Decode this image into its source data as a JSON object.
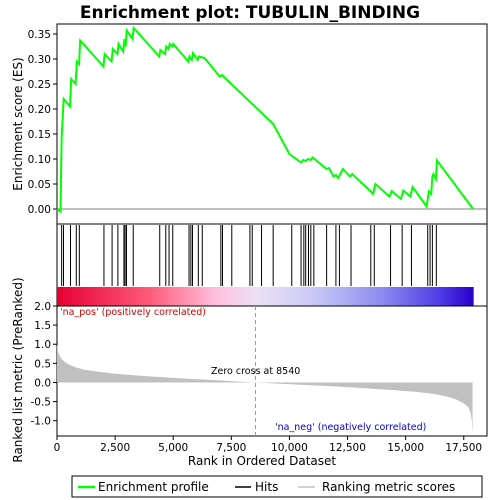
{
  "chart_data": {
    "type": "line",
    "title": "Enrichment plot: TUBULIN_BINDING",
    "xlabel": "Rank in Ordered Dataset",
    "top_ylabel": "Enrichment score (ES)",
    "bottom_ylabel": "Ranked list metric (PreRanked)",
    "xlim": [
      0,
      18500
    ],
    "x_ticks": [
      0,
      2500,
      5000,
      7500,
      10000,
      12500,
      15000,
      17500
    ],
    "x_tick_labels": [
      "0",
      "2,500",
      "5,000",
      "7,500",
      "10,000",
      "12,500",
      "15,000",
      "17,500"
    ],
    "es_ylim": [
      -0.03,
      0.37
    ],
    "es_ticks": [
      0.0,
      0.05,
      0.1,
      0.15,
      0.2,
      0.25,
      0.3,
      0.35
    ],
    "es_tick_labels": [
      "0.00",
      "0.05",
      "0.10",
      "0.15",
      "0.20",
      "0.25",
      "0.30",
      "0.35"
    ],
    "metric_ylim": [
      -1.4,
      2.0
    ],
    "metric_ticks": [
      2.0,
      1.5,
      1.0,
      0.5,
      0.0,
      -0.5,
      -1.0
    ],
    "metric_tick_labels": [
      "2.0",
      "1.5",
      "1.0",
      "0.5",
      "0.0",
      "-0.5",
      "-1.0"
    ],
    "grid": false,
    "series": [
      {
        "name": "Enrichment profile",
        "color": "#00ff00",
        "x": [
          0,
          150,
          200,
          240,
          290,
          560,
          610,
          800,
          850,
          950,
          1000,
          2000,
          2050,
          2350,
          2400,
          2600,
          2650,
          2850,
          2900,
          2950,
          3000,
          3250,
          3300,
          4400,
          4450,
          4650,
          4700,
          4800,
          4850,
          4950,
          5000,
          5650,
          5700,
          5800,
          5850,
          6050,
          6100,
          6350,
          7000,
          7100,
          7500,
          9300,
          10000,
          10500,
          10600,
          10700,
          10800,
          10900,
          11000,
          11600,
          11700,
          11900,
          12000,
          12100,
          12300,
          12500,
          12600,
          12700,
          13500,
          13600,
          13700,
          14300,
          14400,
          14800,
          14900,
          15200,
          15300,
          15900,
          16000,
          16100,
          16150,
          16200,
          16300,
          16350,
          17900
        ],
        "y": [
          0.0,
          -0.005,
          0.14,
          0.18,
          0.22,
          0.205,
          0.26,
          0.25,
          0.295,
          0.29,
          0.337,
          0.285,
          0.31,
          0.295,
          0.32,
          0.31,
          0.33,
          0.315,
          0.34,
          0.325,
          0.357,
          0.34,
          0.362,
          0.305,
          0.318,
          0.31,
          0.325,
          0.32,
          0.33,
          0.325,
          0.33,
          0.295,
          0.305,
          0.298,
          0.312,
          0.298,
          0.305,
          0.302,
          0.265,
          0.268,
          0.25,
          0.17,
          0.11,
          0.093,
          0.098,
          0.096,
          0.1,
          0.098,
          0.103,
          0.08,
          0.082,
          0.065,
          0.068,
          0.062,
          0.08,
          0.07,
          0.065,
          0.07,
          0.035,
          0.03,
          0.05,
          0.025,
          0.036,
          0.02,
          0.037,
          0.025,
          0.044,
          0.005,
          0.035,
          0.03,
          0.065,
          0.07,
          0.06,
          0.097,
          0.0
        ]
      }
    ],
    "hits": [
      200,
      280,
      580,
      830,
      960,
      2020,
      2370,
      2620,
      2880,
      2930,
      2990,
      3280,
      4420,
      4680,
      4820,
      4980,
      5680,
      5760,
      5830,
      6080,
      6250,
      7050,
      7120,
      7520,
      8300,
      8400,
      8800,
      9300,
      10100,
      10500,
      10620,
      10700,
      10820,
      10920,
      11050,
      11600,
      12000,
      12150,
      12650,
      13500,
      13650,
      14350,
      14850,
      15250,
      15950,
      16050,
      16150,
      16320
    ],
    "ranked_metric": {
      "name": "Ranking metric scores",
      "color": "#c0c0c0",
      "x": [
        0,
        50,
        150,
        300,
        500,
        800,
        1200,
        1800,
        2500,
        3500,
        4500,
        5500,
        6500,
        7500,
        8540,
        9500,
        10500,
        11500,
        12500,
        13500,
        14500,
        15500,
        16200,
        16800,
        17200,
        17500,
        17700,
        17800,
        17850,
        17880
      ],
      "y": [
        1.0,
        0.8,
        0.65,
        0.55,
        0.47,
        0.4,
        0.33,
        0.28,
        0.23,
        0.18,
        0.14,
        0.1,
        0.07,
        0.035,
        0.0,
        -0.03,
        -0.06,
        -0.09,
        -0.12,
        -0.16,
        -0.2,
        -0.25,
        -0.3,
        -0.37,
        -0.45,
        -0.55,
        -0.65,
        -0.8,
        -1.0,
        -1.35
      ]
    },
    "annotations": {
      "pos_label": "'na_pos' (positively correlated)",
      "neg_label": "'na_neg' (negatively correlated)",
      "zero_cross": "Zero cross at 8540",
      "zero_cross_x": 8540
    },
    "legend": {
      "placement": "bottom",
      "items": [
        {
          "label": "Enrichment profile",
          "color": "#00ff00"
        },
        {
          "label": "Hits",
          "color": "#000000"
        },
        {
          "label": "Ranking metric scores",
          "color": "#c0c0c0"
        }
      ]
    }
  }
}
